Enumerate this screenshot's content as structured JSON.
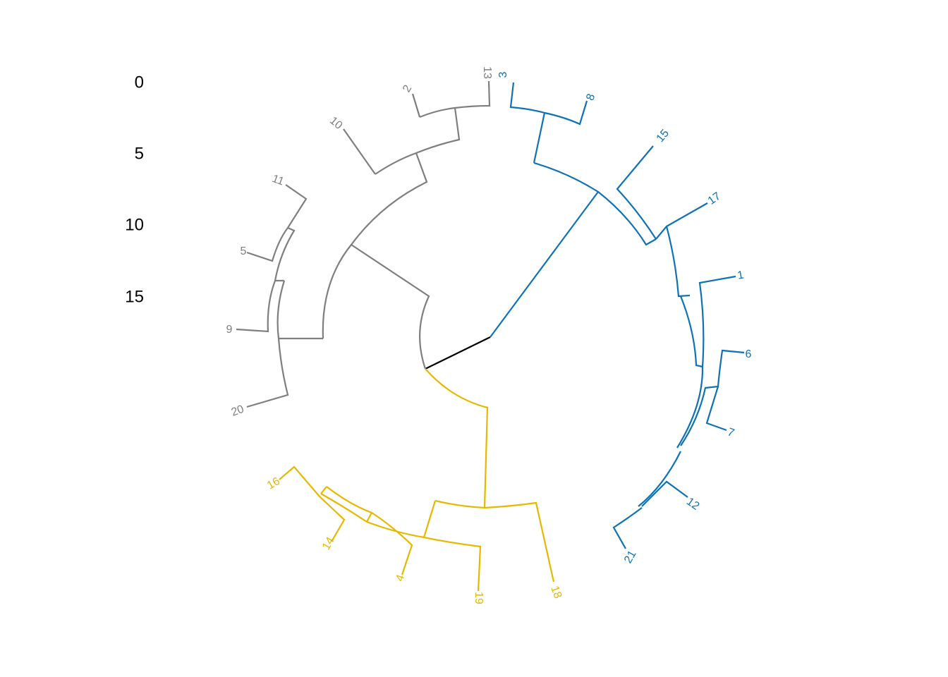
{
  "axis_labels": [
    "0",
    "5",
    "10",
    "15"
  ],
  "clusters": [
    {
      "color": "#7f7f7f",
      "leaves": [
        "13",
        "2",
        "10",
        "11",
        "5",
        "9",
        "20"
      ]
    },
    {
      "color": "#0e72b5",
      "leaves": [
        "3",
        "8",
        "15",
        "17",
        "1",
        "6",
        "7",
        "12",
        "21"
      ]
    },
    {
      "color": "#e7b800",
      "leaves": [
        "16",
        "14",
        "4",
        "19",
        "18"
      ]
    }
  ]
}
